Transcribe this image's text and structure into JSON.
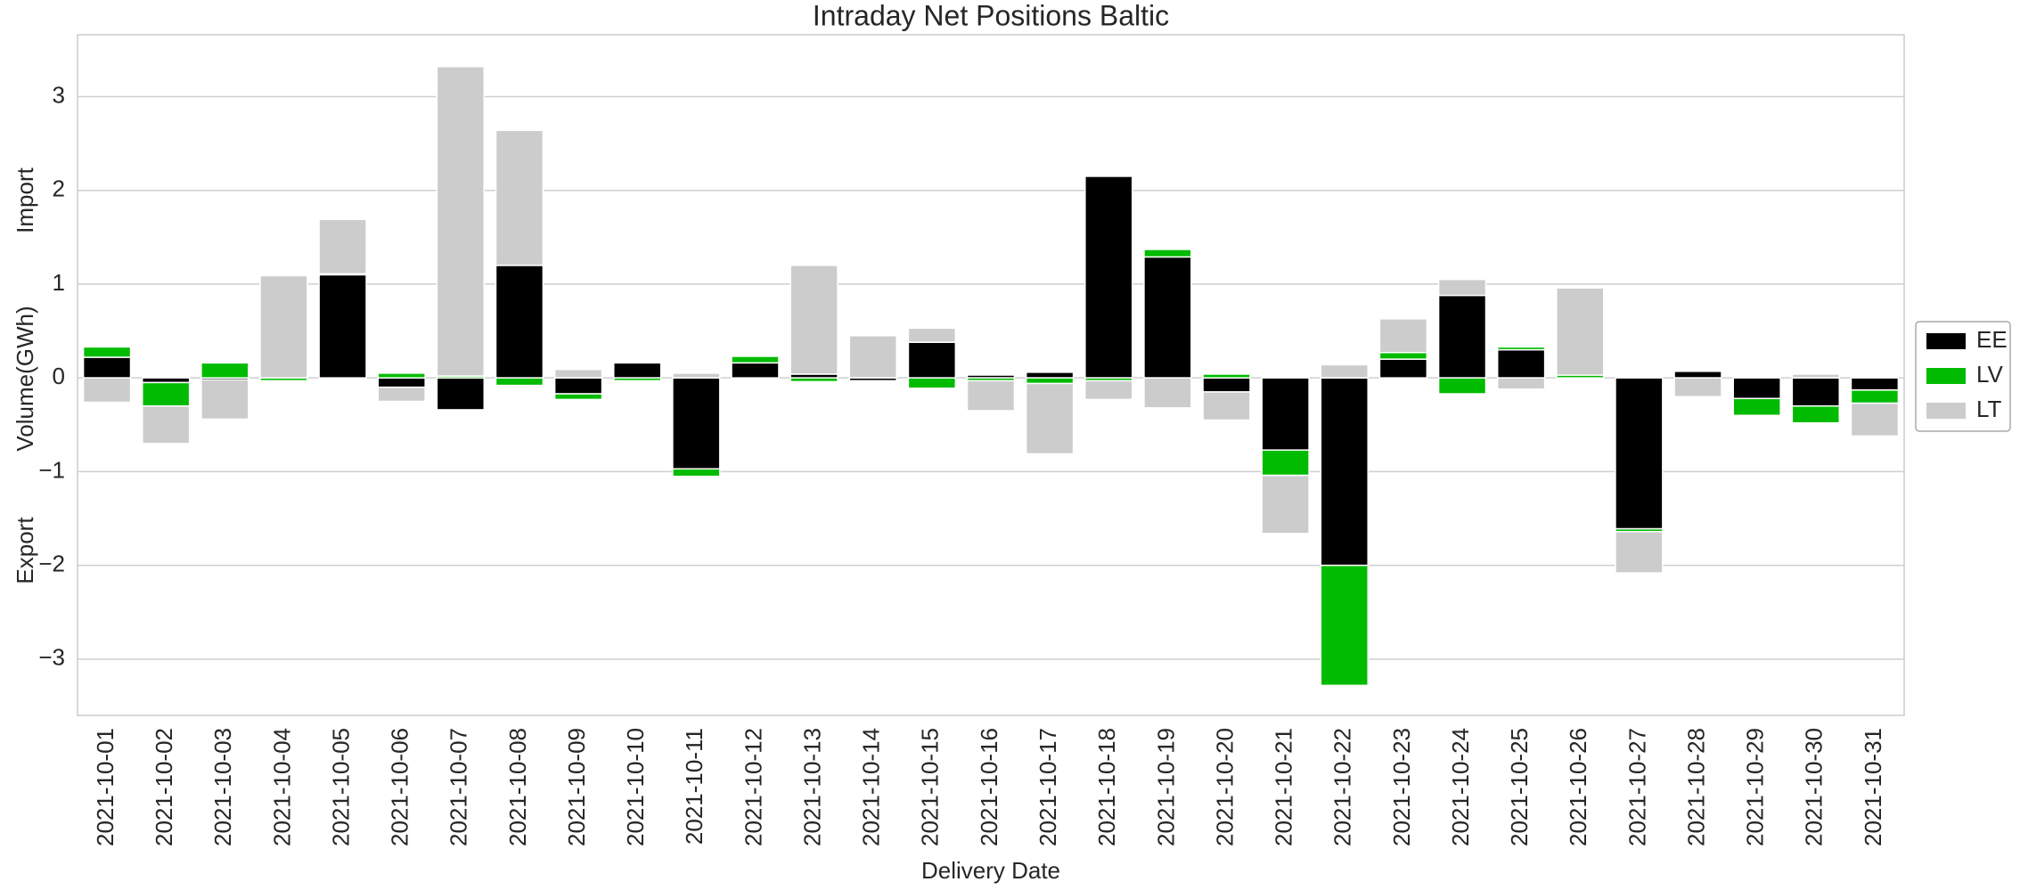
{
  "chart_data": {
    "type": "stacked_bar",
    "title": "Intraday Net Positions Baltic",
    "x_label": "Delivery Date",
    "y_label": "Volume(GWh)",
    "annotations": [
      "Import",
      "Export"
    ],
    "categories": [
      "2021-10-01",
      "2021-10-02",
      "2021-10-03",
      "2021-10-04",
      "2021-10-05",
      "2021-10-06",
      "2021-10-07",
      "2021-10-08",
      "2021-10-09",
      "2021-10-10",
      "2021-10-11",
      "2021-10-12",
      "2021-10-13",
      "2021-10-14",
      "2021-10-15",
      "2021-10-16",
      "2021-10-17",
      "2021-10-18",
      "2021-10-19",
      "2021-10-20",
      "2021-10-21",
      "2021-10-22",
      "2021-10-23",
      "2021-10-24",
      "2021-10-25",
      "2021-10-26",
      "2021-10-27",
      "2021-10-28",
      "2021-10-29",
      "2021-10-30",
      "2021-10-31"
    ],
    "series": [
      {
        "name": "EE",
        "color": "#000000",
        "values": [
          0.22,
          -0.05,
          -0.02,
          0,
          1.1,
          -0.1,
          -0.34,
          1.2,
          -0.17,
          0.16,
          -0.97,
          0.16,
          0.04,
          -0.03,
          0.38,
          0.03,
          0.06,
          2.15,
          1.29,
          -0.15,
          -0.77,
          -2.0,
          0.2,
          0.88,
          0.3,
          0,
          -1.61,
          0.07,
          -0.22,
          -0.3,
          -0.13
        ]
      },
      {
        "name": "LV",
        "color": "#00bb00",
        "values": [
          0.11,
          -0.25,
          0.16,
          -0.03,
          0.01,
          0.05,
          0.02,
          -0.08,
          -0.06,
          -0.03,
          -0.08,
          0.07,
          -0.04,
          0,
          -0.11,
          -0.03,
          -0.06,
          -0.03,
          0.08,
          0.04,
          -0.27,
          -1.28,
          0.07,
          -0.17,
          0.03,
          0.03,
          -0.03,
          0,
          -0.18,
          -0.18,
          -0.14
        ]
      },
      {
        "name": "LT",
        "color": "#cccccc",
        "values": [
          -0.26,
          -0.4,
          -0.42,
          1.09,
          0.58,
          -0.15,
          3.3,
          1.44,
          0.09,
          0,
          0.05,
          0,
          1.16,
          0.45,
          0.15,
          -0.32,
          -0.75,
          -0.2,
          -0.32,
          -0.3,
          -0.62,
          0.14,
          0.36,
          0.17,
          -0.12,
          0.93,
          -0.44,
          -0.2,
          0,
          0.04,
          -0.35
        ]
      }
    ],
    "ylim": [
      -3.6,
      3.66
    ],
    "yticks": [
      {
        "value": -3,
        "label": "−3"
      },
      {
        "value": -2,
        "label": "−2"
      },
      {
        "value": -1,
        "label": "−1"
      },
      0,
      1,
      2,
      3
    ],
    "grid": true,
    "legend": "right"
  }
}
